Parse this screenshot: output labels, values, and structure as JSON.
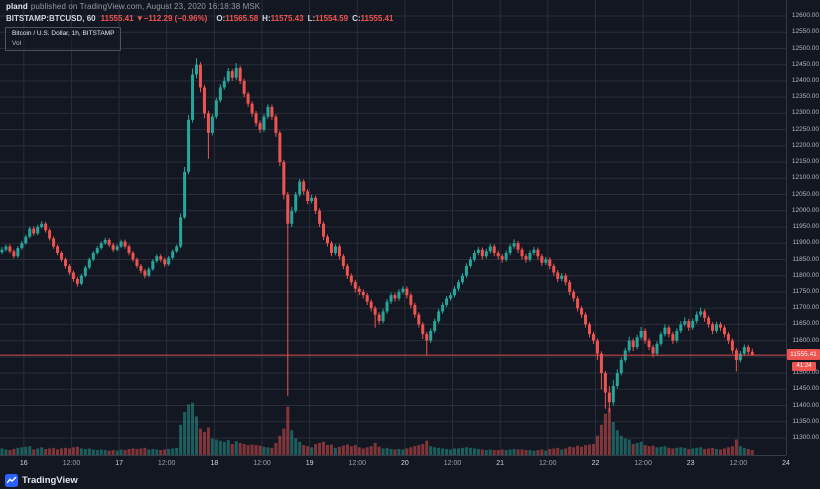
{
  "header": {
    "author": "pland",
    "published": "published on TradingView.com, August 23, 2020 16:18:38 MSK",
    "symbol": "BITSTAMP:BTCUSD, 60",
    "last": "11555.41",
    "direction": "▼",
    "change": "−112.29 (−0.96%)",
    "ohlc": {
      "o_label": "O:",
      "o": "11565.58",
      "h_label": "H:",
      "h": "11575.43",
      "l_label": "L:",
      "l": "11554.59",
      "c_label": "C:",
      "c": "11555.41"
    }
  },
  "legend": {
    "title": "Bitcoin / U.S. Dollar, 1h, BITSTAMP",
    "indicator": "Vol"
  },
  "price_axis": {
    "labels": [
      "12600.00",
      "12550.00",
      "12500.00",
      "12450.00",
      "12400.00",
      "12350.00",
      "12300.00",
      "12250.00",
      "12200.00",
      "12150.00",
      "12100.00",
      "12050.00",
      "12000.00",
      "11950.00",
      "11900.00",
      "11850.00",
      "11800.00",
      "11750.00",
      "11700.00",
      "11650.00",
      "11600.00",
      "11550.00",
      "11500.00",
      "11450.00",
      "11400.00",
      "11350.00",
      "11300.00"
    ],
    "current": "11555.41",
    "countdown": "41:24"
  },
  "time_axis": {
    "ticks": [
      {
        "label": "16",
        "hour": 6
      },
      {
        "label": "12:00",
        "hour": 18
      },
      {
        "label": "17",
        "hour": 30
      },
      {
        "label": "12:00",
        "hour": 42
      },
      {
        "label": "18",
        "hour": 54
      },
      {
        "label": "12:00",
        "hour": 66
      },
      {
        "label": "19",
        "hour": 78
      },
      {
        "label": "12:00",
        "hour": 90
      },
      {
        "label": "20",
        "hour": 102
      },
      {
        "label": "12:00",
        "hour": 114
      },
      {
        "label": "21",
        "hour": 126
      },
      {
        "label": "12:00",
        "hour": 138
      },
      {
        "label": "22",
        "hour": 150
      },
      {
        "label": "12:00",
        "hour": 162
      },
      {
        "label": "23",
        "hour": 174
      },
      {
        "label": "12:00",
        "hour": 186
      },
      {
        "label": "24",
        "hour": 198
      }
    ]
  },
  "footer": {
    "brand": "TradingView"
  },
  "colors": {
    "background": "#131722",
    "grid": "#2a2e39",
    "axis_border": "#363a45",
    "up": "#26a69a",
    "down": "#ef5350",
    "volume_up": "rgba(38,166,154,0.5)",
    "volume_down": "rgba(239,83,80,0.5)",
    "badge_bg": "#ef5350",
    "text_primary": "#d1d4dc",
    "text_secondary": "#9598a1",
    "brand_blue": "#2962ff"
  },
  "chart_data": {
    "type": "candlestick",
    "title": "Bitcoin / U.S. Dollar, 1h, BITSTAMP",
    "symbol": "BITSTAMP:BTCUSD",
    "interval": "60",
    "grid": true,
    "price_range": [
      11300,
      12600
    ],
    "grid_step": 50,
    "hours_domain": [
      0,
      198
    ],
    "last_price": 11555.41,
    "last_change": -112.29,
    "last_change_pct": -0.96,
    "candles_note": "hourly OHLCV estimated from pixels, [open,high,low,close,volume]; bar 0 = Aug 15 2020 18:00, last bar = Aug 23 2020 15:00",
    "candles": [
      [
        11872,
        11888,
        11866,
        11880,
        12
      ],
      [
        11880,
        11896,
        11874,
        11890,
        10
      ],
      [
        11890,
        11897,
        11869,
        11875,
        9
      ],
      [
        11875,
        11881,
        11853,
        11860,
        11
      ],
      [
        11860,
        11891,
        11855,
        11885,
        13
      ],
      [
        11885,
        11907,
        11880,
        11900,
        14
      ],
      [
        11900,
        11926,
        11895,
        11920,
        15
      ],
      [
        11920,
        11951,
        11915,
        11945,
        16
      ],
      [
        11945,
        11952,
        11923,
        11930,
        10
      ],
      [
        11930,
        11957,
        11925,
        11950,
        12
      ],
      [
        11950,
        11968,
        11945,
        11960,
        14
      ],
      [
        11960,
        11966,
        11933,
        11940,
        11
      ],
      [
        11940,
        11946,
        11908,
        11915,
        12
      ],
      [
        11915,
        11921,
        11883,
        11890,
        13
      ],
      [
        11890,
        11896,
        11863,
        11870,
        10
      ],
      [
        11870,
        11876,
        11843,
        11850,
        12
      ],
      [
        11850,
        11856,
        11822,
        11830,
        13
      ],
      [
        11830,
        11836,
        11802,
        11810,
        12
      ],
      [
        11810,
        11816,
        11781,
        11790,
        14
      ],
      [
        11790,
        11796,
        11766,
        11775,
        15
      ],
      [
        11775,
        11806,
        11770,
        11800,
        12
      ],
      [
        11800,
        11831,
        11795,
        11825,
        11
      ],
      [
        11825,
        11856,
        11820,
        11850,
        12
      ],
      [
        11850,
        11876,
        11845,
        11870,
        10
      ],
      [
        11870,
        11891,
        11865,
        11885,
        9
      ],
      [
        11885,
        11906,
        11880,
        11900,
        10
      ],
      [
        11900,
        11917,
        11895,
        11910,
        9
      ],
      [
        11910,
        11916,
        11888,
        11895,
        8
      ],
      [
        11895,
        11901,
        11873,
        11880,
        9
      ],
      [
        11880,
        11897,
        11875,
        11890,
        8
      ],
      [
        11890,
        11911,
        11885,
        11905,
        10
      ],
      [
        11905,
        11911,
        11883,
        11890,
        9
      ],
      [
        11890,
        11896,
        11863,
        11870,
        11
      ],
      [
        11870,
        11876,
        11843,
        11850,
        12
      ],
      [
        11850,
        11856,
        11823,
        11830,
        11
      ],
      [
        11830,
        11836,
        11807,
        11815,
        12
      ],
      [
        11815,
        11821,
        11792,
        11800,
        13
      ],
      [
        11800,
        11826,
        11795,
        11820,
        10
      ],
      [
        11820,
        11851,
        11815,
        11845,
        11
      ],
      [
        11845,
        11866,
        11840,
        11860,
        10
      ],
      [
        11860,
        11866,
        11842,
        11850,
        9
      ],
      [
        11850,
        11856,
        11827,
        11835,
        10
      ],
      [
        11835,
        11861,
        11830,
        11855,
        11
      ],
      [
        11855,
        11881,
        11850,
        11875,
        12
      ],
      [
        11875,
        11896,
        11870,
        11890,
        13
      ],
      [
        11890,
        11992,
        11885,
        11980,
        55
      ],
      [
        11980,
        12135,
        11975,
        12120,
        78
      ],
      [
        12120,
        12295,
        12112,
        12280,
        92
      ],
      [
        12280,
        12438,
        12272,
        12420,
        95
      ],
      [
        12420,
        12470,
        12408,
        12450,
        70
      ],
      [
        12450,
        12458,
        12365,
        12380,
        48
      ],
      [
        12380,
        12388,
        12285,
        12300,
        42
      ],
      [
        12300,
        12308,
        12160,
        12240,
        50
      ],
      [
        12240,
        12298,
        12232,
        12290,
        30
      ],
      [
        12290,
        12348,
        12283,
        12340,
        28
      ],
      [
        12340,
        12390,
        12333,
        12380,
        26
      ],
      [
        12380,
        12412,
        12373,
        12400,
        24
      ],
      [
        12400,
        12440,
        12393,
        12430,
        27
      ],
      [
        12430,
        12437,
        12400,
        12410,
        20
      ],
      [
        12410,
        12455,
        12403,
        12440,
        25
      ],
      [
        12440,
        12447,
        12390,
        12400,
        22
      ],
      [
        12400,
        12407,
        12350,
        12360,
        20
      ],
      [
        12360,
        12367,
        12320,
        12330,
        18
      ],
      [
        12330,
        12337,
        12290,
        12300,
        19
      ],
      [
        12300,
        12307,
        12260,
        12270,
        18
      ],
      [
        12270,
        12278,
        12240,
        12250,
        17
      ],
      [
        12250,
        12298,
        12243,
        12290,
        15
      ],
      [
        12290,
        12328,
        12283,
        12320,
        14
      ],
      [
        12320,
        12327,
        12280,
        12290,
        13
      ],
      [
        12290,
        12297,
        12228,
        12240,
        22
      ],
      [
        12240,
        12247,
        12138,
        12150,
        35
      ],
      [
        12150,
        12157,
        12035,
        12050,
        48
      ],
      [
        12050,
        12058,
        11430,
        11960,
        88
      ],
      [
        11960,
        12012,
        11950,
        12000,
        45
      ],
      [
        12000,
        12058,
        11993,
        12050,
        30
      ],
      [
        12050,
        12098,
        12043,
        12090,
        24
      ],
      [
        12090,
        12097,
        12050,
        12060,
        18
      ],
      [
        12060,
        12067,
        12020,
        12030,
        16
      ],
      [
        12030,
        12049,
        12023,
        12040,
        14
      ],
      [
        12040,
        12047,
        11990,
        12000,
        20
      ],
      [
        12000,
        12007,
        11950,
        11960,
        22
      ],
      [
        11960,
        11967,
        11910,
        11920,
        24
      ],
      [
        11920,
        11927,
        11890,
        11900,
        18
      ],
      [
        11900,
        11907,
        11860,
        11870,
        19
      ],
      [
        11870,
        11897,
        11863,
        11890,
        13
      ],
      [
        11890,
        11897,
        11850,
        11860,
        15
      ],
      [
        11860,
        11867,
        11820,
        11830,
        17
      ],
      [
        11830,
        11837,
        11790,
        11800,
        19
      ],
      [
        11800,
        11807,
        11770,
        11780,
        16
      ],
      [
        11780,
        11787,
        11748,
        11760,
        18
      ],
      [
        11760,
        11768,
        11740,
        11750,
        14
      ],
      [
        11750,
        11758,
        11730,
        11740,
        12
      ],
      [
        11740,
        11747,
        11710,
        11720,
        14
      ],
      [
        11720,
        11727,
        11690,
        11700,
        16
      ],
      [
        11700,
        11707,
        11640,
        11680,
        22
      ],
      [
        11680,
        11687,
        11650,
        11660,
        15
      ],
      [
        11660,
        11698,
        11653,
        11690,
        12
      ],
      [
        11690,
        11728,
        11683,
        11720,
        13
      ],
      [
        11720,
        11748,
        11713,
        11740,
        11
      ],
      [
        11740,
        11747,
        11720,
        11730,
        10
      ],
      [
        11730,
        11758,
        11723,
        11750,
        11
      ],
      [
        11750,
        11768,
        11743,
        11760,
        10
      ],
      [
        11760,
        11767,
        11730,
        11740,
        12
      ],
      [
        11740,
        11747,
        11700,
        11710,
        14
      ],
      [
        11710,
        11717,
        11670,
        11680,
        16
      ],
      [
        11680,
        11687,
        11640,
        11650,
        18
      ],
      [
        11650,
        11657,
        11605,
        11620,
        20
      ],
      [
        11620,
        11627,
        11555,
        11600,
        26
      ],
      [
        11600,
        11638,
        11593,
        11630,
        16
      ],
      [
        11630,
        11668,
        11623,
        11660,
        14
      ],
      [
        11660,
        11698,
        11653,
        11690,
        13
      ],
      [
        11690,
        11718,
        11683,
        11710,
        12
      ],
      [
        11710,
        11738,
        11703,
        11730,
        11
      ],
      [
        11730,
        11748,
        11723,
        11740,
        10
      ],
      [
        11740,
        11768,
        11733,
        11760,
        12
      ],
      [
        11760,
        11788,
        11753,
        11780,
        12
      ],
      [
        11780,
        11808,
        11773,
        11800,
        13
      ],
      [
        11800,
        11838,
        11793,
        11830,
        14
      ],
      [
        11830,
        11858,
        11823,
        11850,
        13
      ],
      [
        11850,
        11878,
        11843,
        11870,
        12
      ],
      [
        11870,
        11888,
        11863,
        11880,
        11
      ],
      [
        11880,
        11887,
        11850,
        11860,
        10
      ],
      [
        11860,
        11883,
        11853,
        11875,
        9
      ],
      [
        11875,
        11898,
        11868,
        11890,
        10
      ],
      [
        11890,
        11897,
        11860,
        11870,
        9
      ],
      [
        11870,
        11877,
        11850,
        11860,
        9
      ],
      [
        11860,
        11867,
        11840,
        11850,
        10
      ],
      [
        11850,
        11878,
        11843,
        11870,
        9
      ],
      [
        11870,
        11898,
        11863,
        11890,
        10
      ],
      [
        11890,
        11912,
        11883,
        11900,
        11
      ],
      [
        11900,
        11907,
        11870,
        11880,
        10
      ],
      [
        11880,
        11887,
        11850,
        11860,
        10
      ],
      [
        11860,
        11867,
        11840,
        11850,
        9
      ],
      [
        11850,
        11878,
        11843,
        11870,
        9
      ],
      [
        11870,
        11888,
        11863,
        11880,
        8
      ],
      [
        11880,
        11887,
        11850,
        11860,
        9
      ],
      [
        11860,
        11867,
        11830,
        11840,
        10
      ],
      [
        11840,
        11858,
        11833,
        11850,
        8
      ],
      [
        11850,
        11857,
        11820,
        11830,
        11
      ],
      [
        11830,
        11837,
        11800,
        11810,
        12
      ],
      [
        11810,
        11817,
        11780,
        11790,
        13
      ],
      [
        11790,
        11808,
        11783,
        11800,
        10
      ],
      [
        11800,
        11807,
        11770,
        11780,
        12
      ],
      [
        11780,
        11787,
        11740,
        11750,
        15
      ],
      [
        11750,
        11757,
        11720,
        11730,
        14
      ],
      [
        11730,
        11737,
        11690,
        11700,
        17
      ],
      [
        11700,
        11707,
        11670,
        11680,
        15
      ],
      [
        11680,
        11687,
        11640,
        11650,
        18
      ],
      [
        11650,
        11657,
        11610,
        11620,
        19
      ],
      [
        11620,
        11627,
        11590,
        11600,
        20
      ],
      [
        11600,
        11607,
        11540,
        11560,
        35
      ],
      [
        11560,
        11567,
        11450,
        11500,
        55
      ],
      [
        11500,
        11507,
        11390,
        11440,
        75
      ],
      [
        11440,
        11460,
        11380,
        11410,
        85
      ],
      [
        11410,
        11478,
        11400,
        11460,
        60
      ],
      [
        11460,
        11512,
        11452,
        11500,
        45
      ],
      [
        11500,
        11548,
        11493,
        11540,
        35
      ],
      [
        11540,
        11578,
        11533,
        11570,
        30
      ],
      [
        11570,
        11612,
        11563,
        11600,
        28
      ],
      [
        11600,
        11607,
        11568,
        11580,
        20
      ],
      [
        11580,
        11618,
        11573,
        11610,
        22
      ],
      [
        11610,
        11642,
        11603,
        11630,
        24
      ],
      [
        11630,
        11637,
        11590,
        11600,
        18
      ],
      [
        11600,
        11607,
        11570,
        11580,
        16
      ],
      [
        11580,
        11587,
        11548,
        11560,
        17
      ],
      [
        11560,
        11598,
        11553,
        11590,
        14
      ],
      [
        11590,
        11628,
        11583,
        11620,
        15
      ],
      [
        11620,
        11650,
        11613,
        11640,
        16
      ],
      [
        11640,
        11647,
        11610,
        11620,
        13
      ],
      [
        11620,
        11627,
        11590,
        11600,
        12
      ],
      [
        11600,
        11638,
        11593,
        11630,
        13
      ],
      [
        11630,
        11660,
        11623,
        11650,
        14
      ],
      [
        11650,
        11672,
        11643,
        11660,
        13
      ],
      [
        11660,
        11667,
        11630,
        11640,
        11
      ],
      [
        11640,
        11668,
        11633,
        11660,
        12
      ],
      [
        11660,
        11690,
        11653,
        11680,
        13
      ],
      [
        11680,
        11702,
        11673,
        11690,
        14
      ],
      [
        11690,
        11697,
        11658,
        11670,
        11
      ],
      [
        11670,
        11677,
        11640,
        11650,
        12
      ],
      [
        11650,
        11657,
        11620,
        11630,
        13
      ],
      [
        11630,
        11658,
        11623,
        11650,
        11
      ],
      [
        11650,
        11657,
        11630,
        11640,
        10
      ],
      [
        11640,
        11647,
        11610,
        11620,
        12
      ],
      [
        11620,
        11627,
        11590,
        11600,
        14
      ],
      [
        11600,
        11607,
        11560,
        11570,
        16
      ],
      [
        11570,
        11577,
        11505,
        11540,
        28
      ],
      [
        11540,
        11568,
        11533,
        11560,
        16
      ],
      [
        11560,
        11588,
        11553,
        11580,
        13
      ],
      [
        11580,
        11587,
        11556,
        11565.58,
        11
      ],
      [
        11565.58,
        11575.43,
        11554.59,
        11555.41,
        9
      ]
    ]
  }
}
